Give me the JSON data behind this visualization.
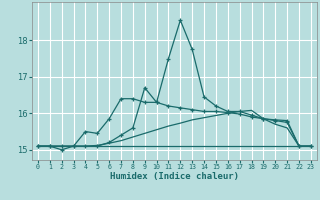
{
  "xlabel": "Humidex (Indice chaleur)",
  "bg_color": "#b8dede",
  "grid_color": "#ffffff",
  "line_color": "#1a6b6b",
  "xlim": [
    -0.5,
    23.5
  ],
  "ylim": [
    14.72,
    19.05
  ],
  "yticks": [
    15,
    16,
    17,
    18
  ],
  "xticks": [
    0,
    1,
    2,
    3,
    4,
    5,
    6,
    7,
    8,
    9,
    10,
    11,
    12,
    13,
    14,
    15,
    16,
    17,
    18,
    19,
    20,
    21,
    22,
    23
  ],
  "series": [
    {
      "x": [
        0,
        1,
        2,
        3,
        4,
        5,
        6,
        7,
        8,
        9,
        10,
        11,
        12,
        13,
        14,
        15,
        16,
        17,
        18,
        19,
        20,
        21,
        22,
        23
      ],
      "y": [
        15.1,
        15.1,
        15.0,
        15.1,
        15.1,
        15.1,
        15.2,
        15.4,
        15.6,
        16.7,
        16.3,
        17.5,
        18.55,
        17.75,
        16.45,
        16.2,
        16.05,
        16.05,
        15.95,
        15.85,
        15.8,
        15.75,
        15.1,
        15.1
      ],
      "marker": true
    },
    {
      "x": [
        0,
        1,
        2,
        3,
        4,
        5,
        6,
        7,
        8,
        9,
        10,
        11,
        12,
        13,
        14,
        15,
        16,
        17,
        18,
        19,
        20,
        21,
        22,
        23
      ],
      "y": [
        15.1,
        15.1,
        15.1,
        15.1,
        15.5,
        15.45,
        15.85,
        16.4,
        16.4,
        16.3,
        16.3,
        16.2,
        16.15,
        16.1,
        16.05,
        16.05,
        16.02,
        15.98,
        15.9,
        15.85,
        15.82,
        15.8,
        15.1,
        15.1
      ],
      "marker": true
    },
    {
      "x": [
        0,
        1,
        2,
        3,
        4,
        5,
        6,
        7,
        8,
        9,
        10,
        11,
        12,
        13,
        14,
        15,
        16,
        17,
        18,
        19,
        20,
        21,
        22,
        23
      ],
      "y": [
        15.1,
        15.1,
        15.1,
        15.1,
        15.1,
        15.12,
        15.18,
        15.25,
        15.35,
        15.45,
        15.55,
        15.65,
        15.73,
        15.82,
        15.88,
        15.94,
        16.0,
        16.05,
        16.08,
        15.85,
        15.7,
        15.6,
        15.1,
        15.1
      ],
      "marker": false
    },
    {
      "x": [
        0,
        23
      ],
      "y": [
        15.1,
        15.1
      ],
      "marker": false
    }
  ]
}
